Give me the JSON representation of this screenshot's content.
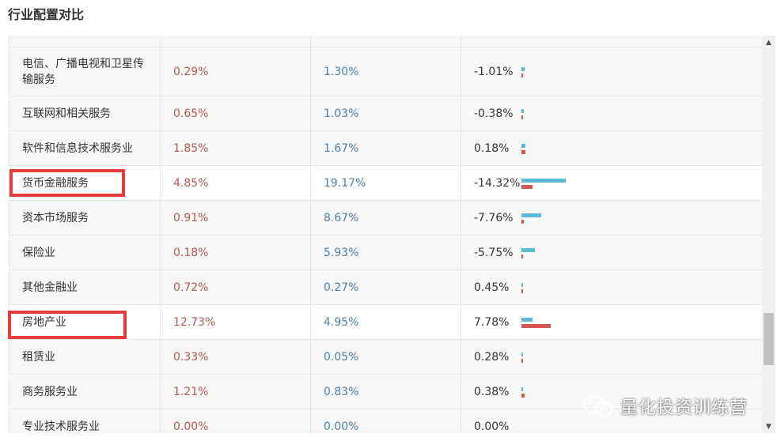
{
  "title": "行业配置对比",
  "rows": [
    {
      "name": "电信、广播电视和卫星传\n输服务",
      "a": "0.29%",
      "b": "1.30%",
      "diff": "-1.01%",
      "a_val": 0.29,
      "b_val": 1.3,
      "highlight": false
    },
    {
      "name": "互联网和相关服务",
      "a": "0.65%",
      "b": "1.03%",
      "diff": "-0.38%",
      "a_val": 0.65,
      "b_val": 1.03,
      "highlight": false
    },
    {
      "name": "软件和信息技术服务业",
      "a": "1.85%",
      "b": "1.67%",
      "diff": "0.18%",
      "a_val": 1.85,
      "b_val": 1.67,
      "highlight": false
    },
    {
      "name": "货币金融服务",
      "a": "4.85%",
      "b": "19.17%",
      "diff": "-14.32%",
      "a_val": 4.85,
      "b_val": 19.17,
      "highlight": true
    },
    {
      "name": "资本市场服务",
      "a": "0.91%",
      "b": "8.67%",
      "diff": "-7.76%",
      "a_val": 0.91,
      "b_val": 8.67,
      "highlight": false
    },
    {
      "name": "保险业",
      "a": "0.18%",
      "b": "5.93%",
      "diff": "-5.75%",
      "a_val": 0.18,
      "b_val": 5.93,
      "highlight": false
    },
    {
      "name": "其他金融业",
      "a": "0.72%",
      "b": "0.27%",
      "diff": "0.45%",
      "a_val": 0.72,
      "b_val": 0.27,
      "highlight": false
    },
    {
      "name": "房地产业",
      "a": "12.73%",
      "b": "4.95%",
      "diff": "7.78%",
      "a_val": 12.73,
      "b_val": 4.95,
      "highlight": true
    },
    {
      "name": "租赁业",
      "a": "0.33%",
      "b": "0.05%",
      "diff": "0.28%",
      "a_val": 0.33,
      "b_val": 0.05,
      "highlight": false
    },
    {
      "name": "商务服务业",
      "a": "1.21%",
      "b": "0.83%",
      "diff": "0.38%",
      "a_val": 1.21,
      "b_val": 0.83,
      "highlight": false
    },
    {
      "name": "专业技术服务业",
      "a": "0.00%",
      "b": "0.00%",
      "diff": "0.00%",
      "a_val": 0.0,
      "b_val": 0.0,
      "highlight": false
    }
  ],
  "colors": {
    "bar_a": "#d9534f",
    "bar_b": "#5bbad5",
    "highlight_box": "#e63b3b"
  },
  "scrollbar": {
    "up_icon": "arrow-up-icon",
    "down_icon": "arrow-down-icon"
  },
  "watermark": {
    "text": "量化投资训练营",
    "icon": "wechat-icon"
  }
}
